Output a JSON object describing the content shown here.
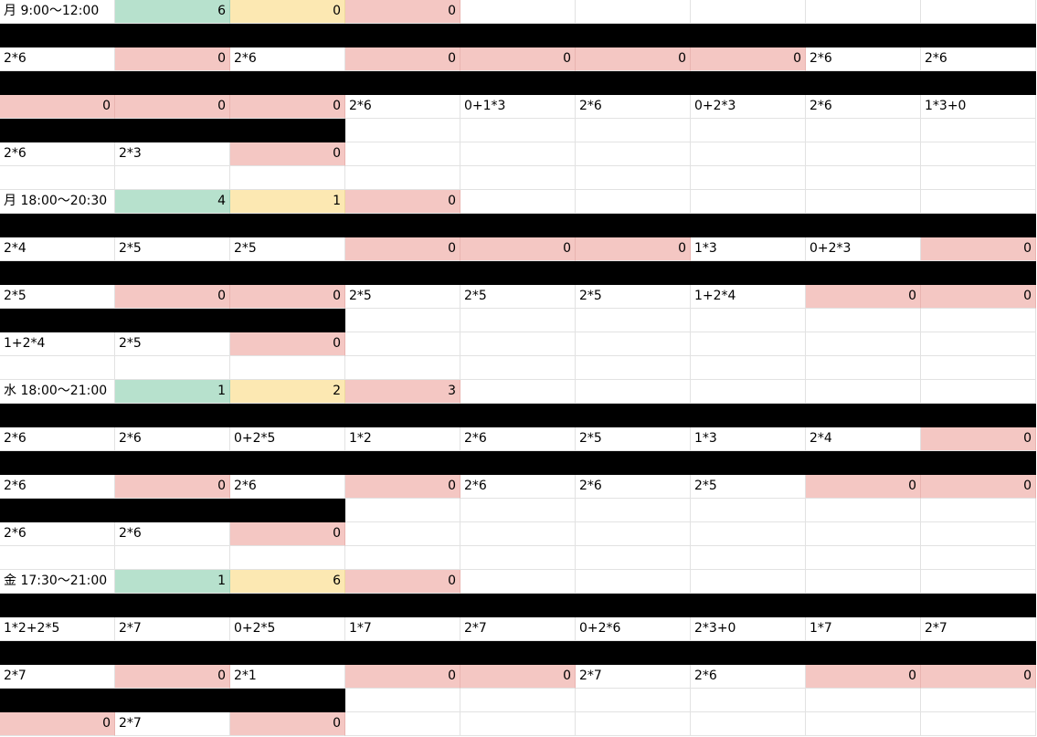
{
  "colors": {
    "black": "#000000",
    "red": "#f4c7c3",
    "green": "#b7e1cd",
    "yellow": "#fce8b2",
    "white": "#ffffff"
  },
  "rows": [
    [
      {
        "v": "月 9:00～12:00",
        "c": "w"
      },
      {
        "v": "6",
        "c": "g",
        "n": true
      },
      {
        "v": "0",
        "c": "y",
        "n": true
      },
      {
        "v": "0",
        "c": "r",
        "n": true
      },
      {
        "v": "",
        "c": "w"
      },
      {
        "v": "",
        "c": "w"
      },
      {
        "v": "",
        "c": "w"
      },
      {
        "v": "",
        "c": "w"
      },
      {
        "v": "",
        "c": "w"
      }
    ],
    [
      {
        "v": "",
        "c": "b"
      },
      {
        "v": "",
        "c": "b"
      },
      {
        "v": "",
        "c": "b"
      },
      {
        "v": "",
        "c": "b"
      },
      {
        "v": "",
        "c": "b"
      },
      {
        "v": "",
        "c": "b"
      },
      {
        "v": "",
        "c": "b"
      },
      {
        "v": "",
        "c": "b"
      },
      {
        "v": "",
        "c": "b"
      }
    ],
    [
      {
        "v": "2*6",
        "c": "w"
      },
      {
        "v": "0",
        "c": "r",
        "n": true
      },
      {
        "v": "2*6",
        "c": "w"
      },
      {
        "v": "0",
        "c": "r",
        "n": true
      },
      {
        "v": "0",
        "c": "r",
        "n": true
      },
      {
        "v": "0",
        "c": "r",
        "n": true
      },
      {
        "v": "0",
        "c": "r",
        "n": true
      },
      {
        "v": "2*6",
        "c": "w"
      },
      {
        "v": "2*6",
        "c": "w"
      }
    ],
    [
      {
        "v": "",
        "c": "b"
      },
      {
        "v": "",
        "c": "b"
      },
      {
        "v": "",
        "c": "b"
      },
      {
        "v": "",
        "c": "b"
      },
      {
        "v": "",
        "c": "b"
      },
      {
        "v": "",
        "c": "b"
      },
      {
        "v": "",
        "c": "b"
      },
      {
        "v": "",
        "c": "b"
      },
      {
        "v": "",
        "c": "b"
      }
    ],
    [
      {
        "v": "0",
        "c": "r",
        "n": true
      },
      {
        "v": "0",
        "c": "r",
        "n": true
      },
      {
        "v": "0",
        "c": "r",
        "n": true
      },
      {
        "v": "2*6",
        "c": "w"
      },
      {
        "v": "0+1*3",
        "c": "w"
      },
      {
        "v": "2*6",
        "c": "w"
      },
      {
        "v": "0+2*3",
        "c": "w"
      },
      {
        "v": "2*6",
        "c": "w"
      },
      {
        "v": "1*3+0",
        "c": "w"
      }
    ],
    [
      {
        "v": "",
        "c": "b"
      },
      {
        "v": "",
        "c": "b"
      },
      {
        "v": "",
        "c": "b"
      },
      {
        "v": "",
        "c": "w"
      },
      {
        "v": "",
        "c": "w"
      },
      {
        "v": "",
        "c": "w"
      },
      {
        "v": "",
        "c": "w"
      },
      {
        "v": "",
        "c": "w"
      },
      {
        "v": "",
        "c": "w"
      }
    ],
    [
      {
        "v": "2*6",
        "c": "w"
      },
      {
        "v": "2*3",
        "c": "w"
      },
      {
        "v": "0",
        "c": "r",
        "n": true
      },
      {
        "v": "",
        "c": "w"
      },
      {
        "v": "",
        "c": "w"
      },
      {
        "v": "",
        "c": "w"
      },
      {
        "v": "",
        "c": "w"
      },
      {
        "v": "",
        "c": "w"
      },
      {
        "v": "",
        "c": "w"
      }
    ],
    [
      {
        "v": "",
        "c": "w"
      },
      {
        "v": "",
        "c": "w"
      },
      {
        "v": "",
        "c": "w"
      },
      {
        "v": "",
        "c": "w"
      },
      {
        "v": "",
        "c": "w"
      },
      {
        "v": "",
        "c": "w"
      },
      {
        "v": "",
        "c": "w"
      },
      {
        "v": "",
        "c": "w"
      },
      {
        "v": "",
        "c": "w"
      }
    ],
    [
      {
        "v": "月 18:00～20:30",
        "c": "w"
      },
      {
        "v": "4",
        "c": "g",
        "n": true
      },
      {
        "v": "1",
        "c": "y",
        "n": true
      },
      {
        "v": "0",
        "c": "r",
        "n": true
      },
      {
        "v": "",
        "c": "w"
      },
      {
        "v": "",
        "c": "w"
      },
      {
        "v": "",
        "c": "w"
      },
      {
        "v": "",
        "c": "w"
      },
      {
        "v": "",
        "c": "w"
      }
    ],
    [
      {
        "v": "",
        "c": "b"
      },
      {
        "v": "",
        "c": "b"
      },
      {
        "v": "",
        "c": "b"
      },
      {
        "v": "",
        "c": "b"
      },
      {
        "v": "",
        "c": "b"
      },
      {
        "v": "",
        "c": "b"
      },
      {
        "v": "",
        "c": "b"
      },
      {
        "v": "",
        "c": "b"
      },
      {
        "v": "",
        "c": "b"
      }
    ],
    [
      {
        "v": "2*4",
        "c": "w"
      },
      {
        "v": "2*5",
        "c": "w"
      },
      {
        "v": "2*5",
        "c": "w"
      },
      {
        "v": "0",
        "c": "r",
        "n": true
      },
      {
        "v": "0",
        "c": "r",
        "n": true
      },
      {
        "v": "0",
        "c": "r",
        "n": true
      },
      {
        "v": "1*3",
        "c": "w"
      },
      {
        "v": "0+2*3",
        "c": "w"
      },
      {
        "v": "0",
        "c": "r",
        "n": true
      }
    ],
    [
      {
        "v": "",
        "c": "b"
      },
      {
        "v": "",
        "c": "b"
      },
      {
        "v": "",
        "c": "b"
      },
      {
        "v": "",
        "c": "b"
      },
      {
        "v": "",
        "c": "b"
      },
      {
        "v": "",
        "c": "b"
      },
      {
        "v": "",
        "c": "b"
      },
      {
        "v": "",
        "c": "b"
      },
      {
        "v": "",
        "c": "b"
      }
    ],
    [
      {
        "v": "2*5",
        "c": "w"
      },
      {
        "v": "0",
        "c": "r",
        "n": true
      },
      {
        "v": "0",
        "c": "r",
        "n": true
      },
      {
        "v": "2*5",
        "c": "w"
      },
      {
        "v": "2*5",
        "c": "w"
      },
      {
        "v": "2*5",
        "c": "w"
      },
      {
        "v": "1+2*4",
        "c": "w"
      },
      {
        "v": "0",
        "c": "r",
        "n": true
      },
      {
        "v": "0",
        "c": "r",
        "n": true
      }
    ],
    [
      {
        "v": "",
        "c": "b"
      },
      {
        "v": "",
        "c": "b"
      },
      {
        "v": "",
        "c": "b"
      },
      {
        "v": "",
        "c": "w"
      },
      {
        "v": "",
        "c": "w"
      },
      {
        "v": "",
        "c": "w"
      },
      {
        "v": "",
        "c": "w"
      },
      {
        "v": "",
        "c": "w"
      },
      {
        "v": "",
        "c": "w"
      }
    ],
    [
      {
        "v": "1+2*4",
        "c": "w"
      },
      {
        "v": "2*5",
        "c": "w"
      },
      {
        "v": "0",
        "c": "r",
        "n": true
      },
      {
        "v": "",
        "c": "w"
      },
      {
        "v": "",
        "c": "w"
      },
      {
        "v": "",
        "c": "w"
      },
      {
        "v": "",
        "c": "w"
      },
      {
        "v": "",
        "c": "w"
      },
      {
        "v": "",
        "c": "w"
      }
    ],
    [
      {
        "v": "",
        "c": "w"
      },
      {
        "v": "",
        "c": "w"
      },
      {
        "v": "",
        "c": "w"
      },
      {
        "v": "",
        "c": "w"
      },
      {
        "v": "",
        "c": "w"
      },
      {
        "v": "",
        "c": "w"
      },
      {
        "v": "",
        "c": "w"
      },
      {
        "v": "",
        "c": "w"
      },
      {
        "v": "",
        "c": "w"
      }
    ],
    [
      {
        "v": "水 18:00～21:00",
        "c": "w"
      },
      {
        "v": "1",
        "c": "g",
        "n": true
      },
      {
        "v": "2",
        "c": "y",
        "n": true
      },
      {
        "v": "3",
        "c": "r",
        "n": true
      },
      {
        "v": "",
        "c": "w"
      },
      {
        "v": "",
        "c": "w"
      },
      {
        "v": "",
        "c": "w"
      },
      {
        "v": "",
        "c": "w"
      },
      {
        "v": "",
        "c": "w"
      }
    ],
    [
      {
        "v": "",
        "c": "b"
      },
      {
        "v": "",
        "c": "b"
      },
      {
        "v": "",
        "c": "b"
      },
      {
        "v": "",
        "c": "b"
      },
      {
        "v": "",
        "c": "b"
      },
      {
        "v": "",
        "c": "b"
      },
      {
        "v": "",
        "c": "b"
      },
      {
        "v": "",
        "c": "b"
      },
      {
        "v": "",
        "c": "b"
      }
    ],
    [
      {
        "v": "2*6",
        "c": "w"
      },
      {
        "v": "2*6",
        "c": "w"
      },
      {
        "v": "0+2*5",
        "c": "w"
      },
      {
        "v": "1*2",
        "c": "w"
      },
      {
        "v": "2*6",
        "c": "w"
      },
      {
        "v": "2*5",
        "c": "w"
      },
      {
        "v": "1*3",
        "c": "w"
      },
      {
        "v": "2*4",
        "c": "w"
      },
      {
        "v": "0",
        "c": "r",
        "n": true
      }
    ],
    [
      {
        "v": "",
        "c": "b"
      },
      {
        "v": "",
        "c": "b"
      },
      {
        "v": "",
        "c": "b"
      },
      {
        "v": "",
        "c": "b"
      },
      {
        "v": "",
        "c": "b"
      },
      {
        "v": "",
        "c": "b"
      },
      {
        "v": "",
        "c": "b"
      },
      {
        "v": "",
        "c": "b"
      },
      {
        "v": "",
        "c": "b"
      }
    ],
    [
      {
        "v": "2*6",
        "c": "w"
      },
      {
        "v": "0",
        "c": "r",
        "n": true
      },
      {
        "v": "2*6",
        "c": "w"
      },
      {
        "v": "0",
        "c": "r",
        "n": true
      },
      {
        "v": "2*6",
        "c": "w"
      },
      {
        "v": "2*6",
        "c": "w"
      },
      {
        "v": "2*5",
        "c": "w"
      },
      {
        "v": "0",
        "c": "r",
        "n": true
      },
      {
        "v": "0",
        "c": "r",
        "n": true
      }
    ],
    [
      {
        "v": "",
        "c": "b"
      },
      {
        "v": "",
        "c": "b"
      },
      {
        "v": "",
        "c": "b"
      },
      {
        "v": "",
        "c": "w"
      },
      {
        "v": "",
        "c": "w"
      },
      {
        "v": "",
        "c": "w"
      },
      {
        "v": "",
        "c": "w"
      },
      {
        "v": "",
        "c": "w"
      },
      {
        "v": "",
        "c": "w"
      }
    ],
    [
      {
        "v": "2*6",
        "c": "w"
      },
      {
        "v": "2*6",
        "c": "w"
      },
      {
        "v": "0",
        "c": "r",
        "n": true
      },
      {
        "v": "",
        "c": "w"
      },
      {
        "v": "",
        "c": "w"
      },
      {
        "v": "",
        "c": "w"
      },
      {
        "v": "",
        "c": "w"
      },
      {
        "v": "",
        "c": "w"
      },
      {
        "v": "",
        "c": "w"
      }
    ],
    [
      {
        "v": "",
        "c": "w"
      },
      {
        "v": "",
        "c": "w"
      },
      {
        "v": "",
        "c": "w"
      },
      {
        "v": "",
        "c": "w"
      },
      {
        "v": "",
        "c": "w"
      },
      {
        "v": "",
        "c": "w"
      },
      {
        "v": "",
        "c": "w"
      },
      {
        "v": "",
        "c": "w"
      },
      {
        "v": "",
        "c": "w"
      }
    ],
    [
      {
        "v": "金 17:30～21:00",
        "c": "w"
      },
      {
        "v": "1",
        "c": "g",
        "n": true
      },
      {
        "v": "6",
        "c": "y",
        "n": true
      },
      {
        "v": "0",
        "c": "r",
        "n": true
      },
      {
        "v": "",
        "c": "w"
      },
      {
        "v": "",
        "c": "w"
      },
      {
        "v": "",
        "c": "w"
      },
      {
        "v": "",
        "c": "w"
      },
      {
        "v": "",
        "c": "w"
      }
    ],
    [
      {
        "v": "",
        "c": "b"
      },
      {
        "v": "",
        "c": "b"
      },
      {
        "v": "",
        "c": "b"
      },
      {
        "v": "",
        "c": "b"
      },
      {
        "v": "",
        "c": "b"
      },
      {
        "v": "",
        "c": "b"
      },
      {
        "v": "",
        "c": "b"
      },
      {
        "v": "",
        "c": "b"
      },
      {
        "v": "",
        "c": "b"
      }
    ],
    [
      {
        "v": "1*2+2*5",
        "c": "w"
      },
      {
        "v": "2*7",
        "c": "w"
      },
      {
        "v": "0+2*5",
        "c": "w"
      },
      {
        "v": "1*7",
        "c": "w"
      },
      {
        "v": "2*7",
        "c": "w"
      },
      {
        "v": "0+2*6",
        "c": "w"
      },
      {
        "v": "2*3+0",
        "c": "w"
      },
      {
        "v": "1*7",
        "c": "w"
      },
      {
        "v": "2*7",
        "c": "w"
      }
    ],
    [
      {
        "v": "",
        "c": "b"
      },
      {
        "v": "",
        "c": "b"
      },
      {
        "v": "",
        "c": "b"
      },
      {
        "v": "",
        "c": "b"
      },
      {
        "v": "",
        "c": "b"
      },
      {
        "v": "",
        "c": "b"
      },
      {
        "v": "",
        "c": "b"
      },
      {
        "v": "",
        "c": "b"
      },
      {
        "v": "",
        "c": "b"
      }
    ],
    [
      {
        "v": "2*7",
        "c": "w"
      },
      {
        "v": "0",
        "c": "r",
        "n": true
      },
      {
        "v": "2*1",
        "c": "w"
      },
      {
        "v": "0",
        "c": "r",
        "n": true
      },
      {
        "v": "0",
        "c": "r",
        "n": true
      },
      {
        "v": "2*7",
        "c": "w"
      },
      {
        "v": "2*6",
        "c": "w"
      },
      {
        "v": "0",
        "c": "r",
        "n": true
      },
      {
        "v": "0",
        "c": "r",
        "n": true
      }
    ],
    [
      {
        "v": "",
        "c": "b"
      },
      {
        "v": "",
        "c": "b"
      },
      {
        "v": "",
        "c": "b"
      },
      {
        "v": "",
        "c": "w"
      },
      {
        "v": "",
        "c": "w"
      },
      {
        "v": "",
        "c": "w"
      },
      {
        "v": "",
        "c": "w"
      },
      {
        "v": "",
        "c": "w"
      },
      {
        "v": "",
        "c": "w"
      }
    ],
    [
      {
        "v": "0",
        "c": "r",
        "n": true
      },
      {
        "v": "2*7",
        "c": "w"
      },
      {
        "v": "0",
        "c": "r",
        "n": true
      },
      {
        "v": "",
        "c": "w"
      },
      {
        "v": "",
        "c": "w"
      },
      {
        "v": "",
        "c": "w"
      },
      {
        "v": "",
        "c": "w"
      },
      {
        "v": "",
        "c": "w"
      },
      {
        "v": "",
        "c": "w"
      }
    ]
  ]
}
